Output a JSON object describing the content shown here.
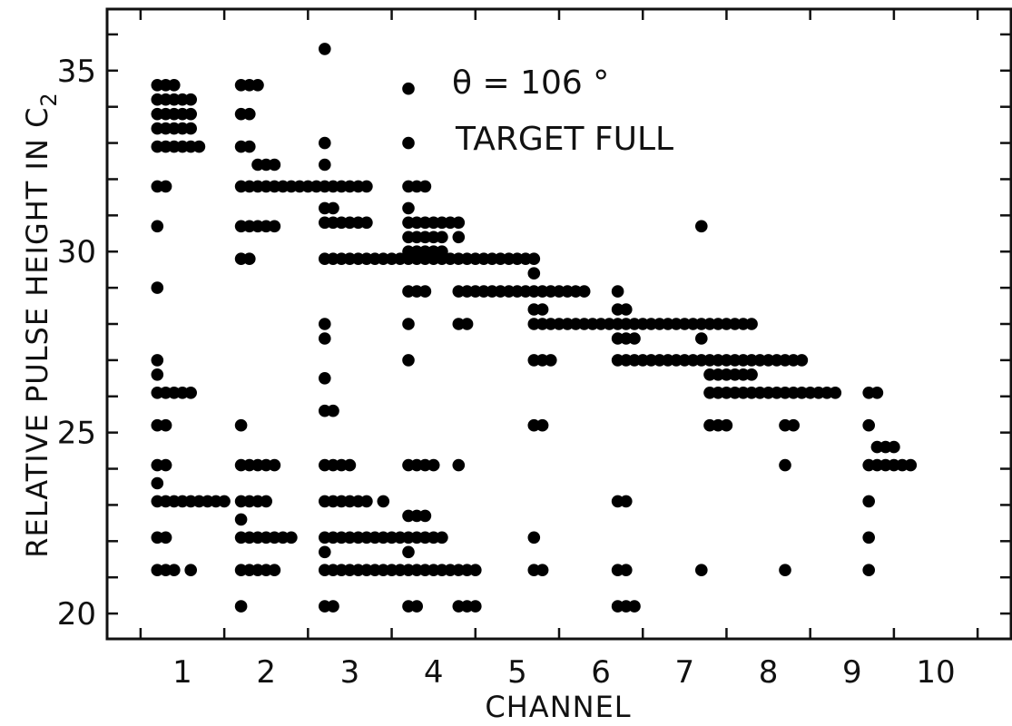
{
  "chart_data": {
    "type": "scatter",
    "title": "",
    "xlabel": "CHANNEL",
    "ylabel": "RELATIVE PULSE HEIGHT IN C",
    "ylabel_subscript": "2",
    "xlim": [
      0.1,
      10.9
    ],
    "ylim": [
      19.3,
      36.7
    ],
    "x_ticks": [
      "1",
      "2",
      "3",
      "4",
      "5",
      "6",
      "7",
      "8",
      "9",
      "10"
    ],
    "y_ticks": [
      "20",
      "25",
      "30",
      "35"
    ],
    "annotations": [
      "θ = 106 °",
      "TARGET FULL"
    ],
    "grid": false,
    "marker": "filled circle",
    "points": [
      [
        0.7,
        34.6
      ],
      [
        0.8,
        34.6
      ],
      [
        0.9,
        34.6
      ],
      [
        0.7,
        34.2
      ],
      [
        0.8,
        34.2
      ],
      [
        0.9,
        34.2
      ],
      [
        1.0,
        34.2
      ],
      [
        1.1,
        34.2
      ],
      [
        0.7,
        33.8
      ],
      [
        0.8,
        33.8
      ],
      [
        0.9,
        33.8
      ],
      [
        1.0,
        33.8
      ],
      [
        1.1,
        33.8
      ],
      [
        0.7,
        33.4
      ],
      [
        0.8,
        33.4
      ],
      [
        0.9,
        33.4
      ],
      [
        1.0,
        33.4
      ],
      [
        1.1,
        33.4
      ],
      [
        0.7,
        32.9
      ],
      [
        0.8,
        32.9
      ],
      [
        0.9,
        32.9
      ],
      [
        1.0,
        32.9
      ],
      [
        1.1,
        32.9
      ],
      [
        1.2,
        32.9
      ],
      [
        0.7,
        31.8
      ],
      [
        0.8,
        31.8
      ],
      [
        0.7,
        30.7
      ],
      [
        0.7,
        29.0
      ],
      [
        0.7,
        27.0
      ],
      [
        0.7,
        26.6
      ],
      [
        0.7,
        26.1
      ],
      [
        0.8,
        26.1
      ],
      [
        0.9,
        26.1
      ],
      [
        1.0,
        26.1
      ],
      [
        1.1,
        26.1
      ],
      [
        0.7,
        25.2
      ],
      [
        0.8,
        25.2
      ],
      [
        0.7,
        24.1
      ],
      [
        0.8,
        24.1
      ],
      [
        0.7,
        23.6
      ],
      [
        0.7,
        23.1
      ],
      [
        0.8,
        23.1
      ],
      [
        0.9,
        23.1
      ],
      [
        1.0,
        23.1
      ],
      [
        1.1,
        23.1
      ],
      [
        1.2,
        23.1
      ],
      [
        1.3,
        23.1
      ],
      [
        0.7,
        22.1
      ],
      [
        0.8,
        22.1
      ],
      [
        0.7,
        21.2
      ],
      [
        0.8,
        21.2
      ],
      [
        0.9,
        21.2
      ],
      [
        1.1,
        21.2
      ],
      [
        1.7,
        34.6
      ],
      [
        1.8,
        34.6
      ],
      [
        1.9,
        34.6
      ],
      [
        1.7,
        33.8
      ],
      [
        1.8,
        33.8
      ],
      [
        1.7,
        32.9
      ],
      [
        1.8,
        32.9
      ],
      [
        1.9,
        32.4
      ],
      [
        2.0,
        32.4
      ],
      [
        2.1,
        32.4
      ],
      [
        1.7,
        31.8
      ],
      [
        1.8,
        31.8
      ],
      [
        1.9,
        31.8
      ],
      [
        2.0,
        31.8
      ],
      [
        2.1,
        31.8
      ],
      [
        2.2,
        31.8
      ],
      [
        1.7,
        30.7
      ],
      [
        1.8,
        30.7
      ],
      [
        1.9,
        30.7
      ],
      [
        2.0,
        30.7
      ],
      [
        2.1,
        30.7
      ],
      [
        1.7,
        29.8
      ],
      [
        1.8,
        29.8
      ],
      [
        1.7,
        25.2
      ],
      [
        1.7,
        24.1
      ],
      [
        1.8,
        24.1
      ],
      [
        1.9,
        24.1
      ],
      [
        2.0,
        24.1
      ],
      [
        2.1,
        24.1
      ],
      [
        1.4,
        23.1
      ],
      [
        1.5,
        23.1
      ],
      [
        1.7,
        23.1
      ],
      [
        1.8,
        23.1
      ],
      [
        1.9,
        23.1
      ],
      [
        2.0,
        23.1
      ],
      [
        1.7,
        22.6
      ],
      [
        1.7,
        22.1
      ],
      [
        1.8,
        22.1
      ],
      [
        1.9,
        22.1
      ],
      [
        2.0,
        22.1
      ],
      [
        2.1,
        22.1
      ],
      [
        2.2,
        22.1
      ],
      [
        2.3,
        22.1
      ],
      [
        1.7,
        21.2
      ],
      [
        1.8,
        21.2
      ],
      [
        1.9,
        21.2
      ],
      [
        2.0,
        21.2
      ],
      [
        2.1,
        21.2
      ],
      [
        1.7,
        20.2
      ],
      [
        2.7,
        35.6
      ],
      [
        2.7,
        33.0
      ],
      [
        2.7,
        32.4
      ],
      [
        2.3,
        31.8
      ],
      [
        2.4,
        31.8
      ],
      [
        2.5,
        31.8
      ],
      [
        2.6,
        31.8
      ],
      [
        2.7,
        31.8
      ],
      [
        2.8,
        31.8
      ],
      [
        2.9,
        31.8
      ],
      [
        3.0,
        31.8
      ],
      [
        3.1,
        31.8
      ],
      [
        3.2,
        31.8
      ],
      [
        2.7,
        31.2
      ],
      [
        2.8,
        31.2
      ],
      [
        2.7,
        30.8
      ],
      [
        2.8,
        30.8
      ],
      [
        2.9,
        30.8
      ],
      [
        3.0,
        30.8
      ],
      [
        3.1,
        30.8
      ],
      [
        3.2,
        30.8
      ],
      [
        2.7,
        29.8
      ],
      [
        2.8,
        29.8
      ],
      [
        2.9,
        29.8
      ],
      [
        3.0,
        29.8
      ],
      [
        3.1,
        29.8
      ],
      [
        3.2,
        29.8
      ],
      [
        2.7,
        28.0
      ],
      [
        2.7,
        27.6
      ],
      [
        2.7,
        26.5
      ],
      [
        2.7,
        25.6
      ],
      [
        2.8,
        25.6
      ],
      [
        2.7,
        24.1
      ],
      [
        2.8,
        24.1
      ],
      [
        2.9,
        24.1
      ],
      [
        3.0,
        24.1
      ],
      [
        2.7,
        23.1
      ],
      [
        2.8,
        23.1
      ],
      [
        2.9,
        23.1
      ],
      [
        3.0,
        23.1
      ],
      [
        3.1,
        23.1
      ],
      [
        3.2,
        23.1
      ],
      [
        2.7,
        22.1
      ],
      [
        2.8,
        22.1
      ],
      [
        2.9,
        22.1
      ],
      [
        3.0,
        22.1
      ],
      [
        3.1,
        22.1
      ],
      [
        3.2,
        22.1
      ],
      [
        3.3,
        22.1
      ],
      [
        2.7,
        21.7
      ],
      [
        2.7,
        21.2
      ],
      [
        2.8,
        21.2
      ],
      [
        2.9,
        21.2
      ],
      [
        3.0,
        21.2
      ],
      [
        3.1,
        21.2
      ],
      [
        3.2,
        21.2
      ],
      [
        3.3,
        21.2
      ],
      [
        2.7,
        20.2
      ],
      [
        2.8,
        20.2
      ],
      [
        3.7,
        34.5
      ],
      [
        3.7,
        33.0
      ],
      [
        3.7,
        31.8
      ],
      [
        3.8,
        31.8
      ],
      [
        3.9,
        31.8
      ],
      [
        3.7,
        31.2
      ],
      [
        3.7,
        30.8
      ],
      [
        3.8,
        30.8
      ],
      [
        3.9,
        30.8
      ],
      [
        4.0,
        30.8
      ],
      [
        4.1,
        30.8
      ],
      [
        4.2,
        30.8
      ],
      [
        4.3,
        30.8
      ],
      [
        3.7,
        30.4
      ],
      [
        3.8,
        30.4
      ],
      [
        3.9,
        30.4
      ],
      [
        4.0,
        30.4
      ],
      [
        4.1,
        30.4
      ],
      [
        4.3,
        30.4
      ],
      [
        3.7,
        30.0
      ],
      [
        3.8,
        30.0
      ],
      [
        3.9,
        30.0
      ],
      [
        4.0,
        30.0
      ],
      [
        4.1,
        30.0
      ],
      [
        3.3,
        29.8
      ],
      [
        3.4,
        29.8
      ],
      [
        3.5,
        29.8
      ],
      [
        3.6,
        29.8
      ],
      [
        3.7,
        29.8
      ],
      [
        3.8,
        29.8
      ],
      [
        3.9,
        29.8
      ],
      [
        4.0,
        29.8
      ],
      [
        4.1,
        29.8
      ],
      [
        4.2,
        29.8
      ],
      [
        4.3,
        29.8
      ],
      [
        4.4,
        29.8
      ],
      [
        4.5,
        29.8
      ],
      [
        4.6,
        29.8
      ],
      [
        4.7,
        29.8
      ],
      [
        4.8,
        29.8
      ],
      [
        4.9,
        29.8
      ],
      [
        5.0,
        29.8
      ],
      [
        5.1,
        29.8
      ],
      [
        3.7,
        28.9
      ],
      [
        3.8,
        28.9
      ],
      [
        3.9,
        28.9
      ],
      [
        3.7,
        28.0
      ],
      [
        3.7,
        27.0
      ],
      [
        3.7,
        24.1
      ],
      [
        3.8,
        24.1
      ],
      [
        3.9,
        24.1
      ],
      [
        4.0,
        24.1
      ],
      [
        3.4,
        23.1
      ],
      [
        3.7,
        22.7
      ],
      [
        3.8,
        22.7
      ],
      [
        3.9,
        22.7
      ],
      [
        3.4,
        22.1
      ],
      [
        3.5,
        22.1
      ],
      [
        3.6,
        22.1
      ],
      [
        3.7,
        22.1
      ],
      [
        3.8,
        22.1
      ],
      [
        3.9,
        22.1
      ],
      [
        4.0,
        22.1
      ],
      [
        4.1,
        22.1
      ],
      [
        3.7,
        21.7
      ],
      [
        3.4,
        21.2
      ],
      [
        3.5,
        21.2
      ],
      [
        3.6,
        21.2
      ],
      [
        3.7,
        21.2
      ],
      [
        3.8,
        21.2
      ],
      [
        3.9,
        21.2
      ],
      [
        4.0,
        21.2
      ],
      [
        4.1,
        21.2
      ],
      [
        4.2,
        21.2
      ],
      [
        4.3,
        21.2
      ],
      [
        4.4,
        21.2
      ],
      [
        4.5,
        21.2
      ],
      [
        3.7,
        20.2
      ],
      [
        3.8,
        20.2
      ],
      [
        4.3,
        28.9
      ],
      [
        4.4,
        28.9
      ],
      [
        4.5,
        28.9
      ],
      [
        4.6,
        28.9
      ],
      [
        4.7,
        28.9
      ],
      [
        4.8,
        28.9
      ],
      [
        4.9,
        28.9
      ],
      [
        5.0,
        28.9
      ],
      [
        5.1,
        28.9
      ],
      [
        5.2,
        28.9
      ],
      [
        5.3,
        28.9
      ],
      [
        5.4,
        28.9
      ],
      [
        5.5,
        28.9
      ],
      [
        5.6,
        28.9
      ],
      [
        5.7,
        28.9
      ],
      [
        5.8,
        28.9
      ],
      [
        4.3,
        28.0
      ],
      [
        4.4,
        28.0
      ],
      [
        4.3,
        24.1
      ],
      [
        4.3,
        20.2
      ],
      [
        4.4,
        20.2
      ],
      [
        4.5,
        20.2
      ],
      [
        5.2,
        29.8
      ],
      [
        5.2,
        29.4
      ],
      [
        5.2,
        28.4
      ],
      [
        5.3,
        28.4
      ],
      [
        5.2,
        28.0
      ],
      [
        5.3,
        28.0
      ],
      [
        5.4,
        28.0
      ],
      [
        5.5,
        28.0
      ],
      [
        5.6,
        28.0
      ],
      [
        5.7,
        28.0
      ],
      [
        5.8,
        28.0
      ],
      [
        5.9,
        28.0
      ],
      [
        6.0,
        28.0
      ],
      [
        6.1,
        28.0
      ],
      [
        6.2,
        28.0
      ],
      [
        6.3,
        28.0
      ],
      [
        6.4,
        28.0
      ],
      [
        6.5,
        28.0
      ],
      [
        6.6,
        28.0
      ],
      [
        6.7,
        28.0
      ],
      [
        6.8,
        28.0
      ],
      [
        6.9,
        28.0
      ],
      [
        7.0,
        28.0
      ],
      [
        7.1,
        28.0
      ],
      [
        5.2,
        27.0
      ],
      [
        5.3,
        27.0
      ],
      [
        5.4,
        27.0
      ],
      [
        5.2,
        25.2
      ],
      [
        5.3,
        25.2
      ],
      [
        5.2,
        22.1
      ],
      [
        5.2,
        21.2
      ],
      [
        5.3,
        21.2
      ],
      [
        6.2,
        28.9
      ],
      [
        6.2,
        28.4
      ],
      [
        6.3,
        28.4
      ],
      [
        6.2,
        27.6
      ],
      [
        6.3,
        27.6
      ],
      [
        6.4,
        27.6
      ],
      [
        6.2,
        27.0
      ],
      [
        6.3,
        27.0
      ],
      [
        6.4,
        27.0
      ],
      [
        6.5,
        27.0
      ],
      [
        6.6,
        27.0
      ],
      [
        6.7,
        27.0
      ],
      [
        6.8,
        27.0
      ],
      [
        6.9,
        27.0
      ],
      [
        7.0,
        27.0
      ],
      [
        7.1,
        27.0
      ],
      [
        6.2,
        23.1
      ],
      [
        6.3,
        23.1
      ],
      [
        6.2,
        21.2
      ],
      [
        6.3,
        21.2
      ],
      [
        6.2,
        20.2
      ],
      [
        6.3,
        20.2
      ],
      [
        6.4,
        20.2
      ],
      [
        7.2,
        30.7
      ],
      [
        7.2,
        28.0
      ],
      [
        7.3,
        28.0
      ],
      [
        7.4,
        28.0
      ],
      [
        7.5,
        28.0
      ],
      [
        7.6,
        28.0
      ],
      [
        7.7,
        28.0
      ],
      [
        7.8,
        28.0
      ],
      [
        7.2,
        27.6
      ],
      [
        7.2,
        27.0
      ],
      [
        7.3,
        27.0
      ],
      [
        7.4,
        27.0
      ],
      [
        7.5,
        27.0
      ],
      [
        7.6,
        27.0
      ],
      [
        7.7,
        27.0
      ],
      [
        7.8,
        27.0
      ],
      [
        7.9,
        27.0
      ],
      [
        8.0,
        27.0
      ],
      [
        8.1,
        27.0
      ],
      [
        8.2,
        27.0
      ],
      [
        8.3,
        27.0
      ],
      [
        8.4,
        27.0
      ],
      [
        7.3,
        26.6
      ],
      [
        7.4,
        26.6
      ],
      [
        7.5,
        26.6
      ],
      [
        7.6,
        26.6
      ],
      [
        7.7,
        26.6
      ],
      [
        7.8,
        26.6
      ],
      [
        7.3,
        26.1
      ],
      [
        7.4,
        26.1
      ],
      [
        7.5,
        26.1
      ],
      [
        7.6,
        26.1
      ],
      [
        7.7,
        26.1
      ],
      [
        7.8,
        26.1
      ],
      [
        7.9,
        26.1
      ],
      [
        8.0,
        26.1
      ],
      [
        8.1,
        26.1
      ],
      [
        8.2,
        26.1
      ],
      [
        8.3,
        26.1
      ],
      [
        8.4,
        26.1
      ],
      [
        8.5,
        26.1
      ],
      [
        8.6,
        26.1
      ],
      [
        8.7,
        26.1
      ],
      [
        8.8,
        26.1
      ],
      [
        7.3,
        25.2
      ],
      [
        7.4,
        25.2
      ],
      [
        7.5,
        25.2
      ],
      [
        7.2,
        21.2
      ],
      [
        8.2,
        25.2
      ],
      [
        8.3,
        25.2
      ],
      [
        8.2,
        24.1
      ],
      [
        8.2,
        21.2
      ],
      [
        9.2,
        26.1
      ],
      [
        9.3,
        26.1
      ],
      [
        9.2,
        25.2
      ],
      [
        9.3,
        24.6
      ],
      [
        9.4,
        24.6
      ],
      [
        9.5,
        24.6
      ],
      [
        9.2,
        24.1
      ],
      [
        9.3,
        24.1
      ],
      [
        9.4,
        24.1
      ],
      [
        9.5,
        24.1
      ],
      [
        9.6,
        24.1
      ],
      [
        9.7,
        24.1
      ],
      [
        9.2,
        23.1
      ],
      [
        9.2,
        22.1
      ],
      [
        9.2,
        21.2
      ]
    ]
  }
}
